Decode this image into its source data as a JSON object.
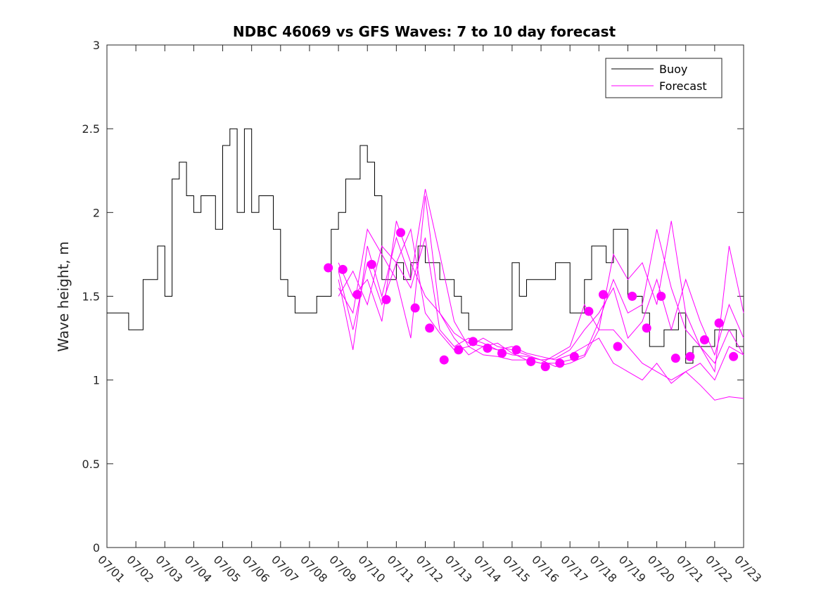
{
  "chart_data": {
    "type": "line",
    "title": "NDBC 46069 vs GFS Waves: 7 to 10 day forecast",
    "xlabel": "",
    "ylabel": "Wave height, m",
    "ylim": [
      0,
      3
    ],
    "yticks": [
      0,
      0.5,
      1,
      1.5,
      2,
      2.5,
      3
    ],
    "xlim_days": [
      0,
      22
    ],
    "xtick_labels": [
      "07/01",
      "07/02",
      "07/03",
      "07/04",
      "07/05",
      "07/06",
      "07/07",
      "07/08",
      "07/09",
      "07/10",
      "07/11",
      "07/12",
      "07/13",
      "07/14",
      "07/15",
      "07/16",
      "07/17",
      "07/18",
      "07/19",
      "07/20",
      "07/21",
      "07/22",
      "07/23"
    ],
    "grid": false,
    "legend_position": "top-right",
    "colors": {
      "buoy": "#000000",
      "forecast": "#ff00ff"
    },
    "series": [
      {
        "name": "Buoy",
        "style": "line",
        "x": [
          0,
          0.25,
          0.5,
          0.75,
          1,
          1.25,
          1.5,
          1.75,
          2,
          2.25,
          2.5,
          2.75,
          3,
          3.25,
          3.5,
          3.75,
          4,
          4.25,
          4.5,
          4.75,
          5,
          5.25,
          5.5,
          5.75,
          6,
          6.25,
          6.5,
          6.75,
          7,
          7.25,
          7.5,
          7.75,
          8,
          8.25,
          8.5,
          8.75,
          9,
          9.25,
          9.5,
          9.75,
          10,
          10.25,
          10.5,
          10.75,
          11,
          11.25,
          11.5,
          11.75,
          12,
          12.25,
          12.5,
          12.75,
          13,
          13.25,
          13.5,
          13.75,
          14,
          14.25,
          14.5,
          14.75,
          15,
          15.25,
          15.5,
          15.75,
          16,
          16.25,
          16.5,
          16.75,
          17,
          17.25,
          17.5,
          17.75,
          18,
          18.25,
          18.5,
          18.75,
          19,
          19.25,
          19.5,
          19.75,
          20,
          20.25,
          20.5,
          20.75,
          21,
          21.25,
          21.5,
          21.75,
          22
        ],
        "y": [
          1.4,
          1.4,
          1.4,
          1.3,
          1.3,
          1.6,
          1.6,
          1.8,
          1.5,
          2.2,
          2.3,
          2.1,
          2.0,
          2.1,
          2.1,
          1.9,
          2.4,
          2.5,
          2.0,
          2.5,
          2.0,
          2.1,
          2.1,
          1.9,
          1.6,
          1.5,
          1.4,
          1.4,
          1.4,
          1.5,
          1.5,
          1.9,
          2.0,
          2.2,
          2.2,
          2.4,
          2.3,
          2.1,
          1.6,
          1.6,
          1.7,
          1.6,
          1.7,
          1.8,
          1.7,
          1.7,
          1.6,
          1.6,
          1.5,
          1.4,
          1.3,
          1.3,
          1.3,
          1.3,
          1.3,
          1.3,
          1.7,
          1.5,
          1.6,
          1.6,
          1.6,
          1.6,
          1.7,
          1.7,
          1.4,
          1.4,
          1.6,
          1.8,
          1.8,
          1.7,
          1.9,
          1.9,
          1.5,
          1.5,
          1.4,
          1.2,
          1.2,
          1.3,
          1.3,
          1.4,
          1.1,
          1.2,
          1.2,
          1.2,
          1.3,
          1.3,
          1.3,
          1.2,
          1.2
        ]
      },
      {
        "name": "Forecast",
        "style": "dots",
        "x": [
          7.65,
          8.15,
          8.65,
          9.15,
          9.65,
          10.15,
          10.65,
          11.15,
          11.65,
          12.15,
          12.65,
          13.15,
          13.65,
          14.15,
          14.65,
          15.15,
          15.65,
          16.15,
          16.65,
          17.15,
          17.65,
          18.15,
          18.65,
          19.15,
          19.65,
          20.15,
          20.65,
          21.15,
          21.65
        ],
        "y": [
          1.67,
          1.66,
          1.51,
          1.69,
          1.48,
          1.88,
          1.43,
          1.31,
          1.12,
          1.18,
          1.23,
          1.19,
          1.16,
          1.18,
          1.11,
          1.08,
          1.1,
          1.14,
          1.41,
          1.51,
          1.2,
          1.5,
          1.31,
          1.5,
          1.13,
          1.14,
          1.24,
          1.34,
          1.14
        ]
      },
      {
        "name": "Forecast",
        "style": "line",
        "x": [
          8.0,
          8.5,
          9.0,
          9.5,
          10.0,
          10.5,
          11.0,
          11.5,
          12.0,
          12.5,
          13.0,
          13.5,
          14.0,
          14.5,
          15.0,
          15.5,
          16.0,
          16.5,
          17.0,
          17.5,
          18.0,
          18.5,
          19.0,
          19.5,
          20.0,
          20.5,
          21.0,
          21.5,
          22.0
        ],
        "y": [
          1.55,
          1.4,
          1.9,
          1.75,
          1.6,
          1.25,
          2.1,
          1.4,
          1.25,
          1.15,
          1.2,
          1.22,
          1.16,
          1.12,
          1.1,
          1.1,
          1.12,
          1.15,
          1.35,
          1.6,
          1.4,
          1.45,
          1.9,
          1.55,
          1.3,
          1.2,
          1.1,
          1.3,
          1.15
        ]
      },
      {
        "name": "Forecast",
        "style": "line",
        "x": [
          8.0,
          8.5,
          9.0,
          9.5,
          10.0,
          10.5,
          11.0,
          11.5,
          12.0,
          12.5,
          13.0,
          13.5,
          14.0,
          14.5,
          15.0,
          15.5,
          16.0,
          16.5,
          17.0,
          17.5,
          18.0,
          18.5,
          19.0,
          19.5,
          20.0,
          20.5,
          21.0,
          21.5,
          22.0
        ],
        "y": [
          1.6,
          1.18,
          1.8,
          1.5,
          1.85,
          1.6,
          2.14,
          1.75,
          1.35,
          1.2,
          1.25,
          1.2,
          1.18,
          1.15,
          1.12,
          1.08,
          1.1,
          1.14,
          1.3,
          1.3,
          1.2,
          1.1,
          1.05,
          1.0,
          1.05,
          0.97,
          0.88,
          0.9,
          0.89
        ]
      },
      {
        "name": "Forecast",
        "style": "line",
        "x": [
          8.0,
          8.5,
          9.0,
          9.5,
          10.0,
          10.5,
          11.0,
          11.5,
          12.0,
          12.5,
          13.0,
          13.5,
          14.0,
          14.5,
          15.0,
          15.5,
          16.0,
          16.5,
          17.0,
          17.5,
          18.0,
          18.5,
          19.0,
          19.5,
          20.0,
          20.5,
          21.0,
          21.5,
          22.0
        ],
        "y": [
          1.5,
          1.65,
          1.45,
          1.8,
          1.7,
          1.9,
          1.4,
          1.28,
          1.18,
          1.2,
          1.15,
          1.14,
          1.12,
          1.12,
          1.1,
          1.15,
          1.2,
          1.45,
          1.3,
          1.75,
          1.6,
          1.7,
          1.45,
          1.95,
          1.4,
          1.2,
          1.05,
          1.8,
          1.4
        ]
      },
      {
        "name": "Forecast",
        "style": "line",
        "x": [
          8.0,
          8.5,
          9.0,
          9.5,
          10.0,
          10.5,
          11.0,
          11.5,
          12.0,
          12.5,
          13.0,
          13.5,
          14.0,
          14.5,
          15.0,
          15.5,
          16.0,
          16.5,
          17.0,
          17.5,
          18.0,
          18.5,
          19.0,
          19.5,
          20.0,
          20.5,
          21.0,
          21.5,
          22.0
        ],
        "y": [
          1.65,
          1.3,
          1.7,
          1.45,
          1.7,
          1.55,
          1.85,
          1.3,
          1.2,
          1.25,
          1.22,
          1.18,
          1.2,
          1.16,
          1.14,
          1.12,
          1.15,
          1.2,
          1.25,
          1.1,
          1.05,
          1.0,
          1.1,
          0.98,
          1.05,
          1.1,
          1.0,
          1.2,
          1.15
        ]
      },
      {
        "name": "Forecast",
        "style": "line",
        "x": [
          8.0,
          8.5,
          9.0,
          9.5,
          10.0,
          10.5,
          11.0,
          11.5,
          12.0,
          12.5,
          13.0,
          13.5,
          14.0,
          14.5,
          15.0,
          15.5,
          16.0,
          16.5,
          17.0,
          17.5,
          18.0,
          18.5,
          19.0,
          19.5,
          20.0,
          20.5,
          21.0,
          21.5,
          22.0
        ],
        "y": [
          1.7,
          1.5,
          1.6,
          1.35,
          1.95,
          1.7,
          1.5,
          1.4,
          1.28,
          1.22,
          1.2,
          1.18,
          1.15,
          1.14,
          1.12,
          1.13,
          1.18,
          1.3,
          1.4,
          1.55,
          1.25,
          1.35,
          1.6,
          1.3,
          1.6,
          1.35,
          1.15,
          1.45,
          1.25
        ]
      }
    ]
  }
}
